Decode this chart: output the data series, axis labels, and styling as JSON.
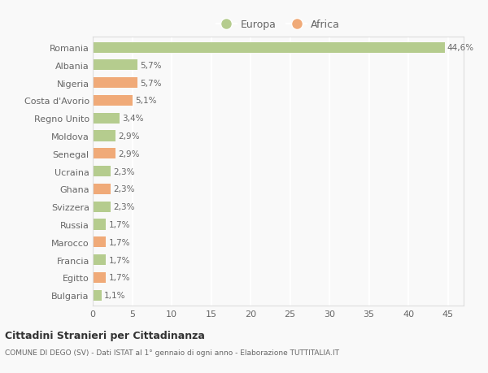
{
  "categories": [
    "Romania",
    "Albania",
    "Nigeria",
    "Costa d'Avorio",
    "Regno Unito",
    "Moldova",
    "Senegal",
    "Ucraina",
    "Ghana",
    "Svizzera",
    "Russia",
    "Marocco",
    "Francia",
    "Egitto",
    "Bulgaria"
  ],
  "values": [
    44.6,
    5.7,
    5.7,
    5.1,
    3.4,
    2.9,
    2.9,
    2.3,
    2.3,
    2.3,
    1.7,
    1.7,
    1.7,
    1.7,
    1.1
  ],
  "continents": [
    "Europa",
    "Europa",
    "Africa",
    "Africa",
    "Europa",
    "Europa",
    "Africa",
    "Europa",
    "Africa",
    "Europa",
    "Europa",
    "Africa",
    "Europa",
    "Africa",
    "Europa"
  ],
  "labels": [
    "44,6%",
    "5,7%",
    "5,7%",
    "5,1%",
    "3,4%",
    "2,9%",
    "2,9%",
    "2,3%",
    "2,3%",
    "2,3%",
    "1,7%",
    "1,7%",
    "1,7%",
    "1,7%",
    "1,1%"
  ],
  "europa_color": "#b5cc8e",
  "africa_color": "#f0aa78",
  "background_color": "#f9f9f9",
  "grid_color": "#ffffff",
  "text_color": "#666666",
  "title": "Cittadini Stranieri per Cittadinanza",
  "subtitle": "COMUNE DI DEGO (SV) - Dati ISTAT al 1° gennaio di ogni anno - Elaborazione TUTTITALIA.IT",
  "xlim": [
    0,
    47
  ],
  "xticks": [
    0,
    5,
    10,
    15,
    20,
    25,
    30,
    35,
    40,
    45
  ],
  "legend_europa": "Europa",
  "legend_africa": "Africa",
  "bar_height": 0.6
}
